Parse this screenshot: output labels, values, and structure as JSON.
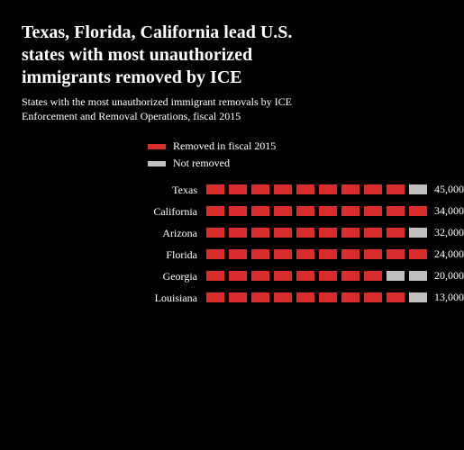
{
  "title_line1": "Texas, Florida, California lead U.S.",
  "title_line2": "states with most unauthorized",
  "title_line3": "immigrants removed by ICE",
  "subtitle_line1": "States with the most unauthorized immigrant removals by ICE",
  "subtitle_line2": "Enforcement and Removal Operations, fiscal 2015",
  "legend": [
    {
      "label": "Removed in fiscal 2015",
      "color": "#d92c2c"
    },
    {
      "label": "Not removed",
      "color": "#bfbfbf"
    }
  ],
  "seg_width": 20,
  "seg_total": 10,
  "colors": {
    "filled": "#d92c2c",
    "empty": "#bfbfbf",
    "bg": "#000000",
    "text": "#ffffff"
  },
  "rows": [
    {
      "label": "Texas",
      "value": "45,000",
      "filled": 9
    },
    {
      "label": "California",
      "value": "34,000",
      "filled": 10
    },
    {
      "label": "Arizona",
      "value": "32,000",
      "filled": 9
    },
    {
      "label": "Florida",
      "value": "24,000",
      "filled": 10
    },
    {
      "label": "Georgia",
      "value": "20,000",
      "filled": 8
    },
    {
      "label": "Louisiana",
      "value": "13,000",
      "filled": 9
    }
  ]
}
